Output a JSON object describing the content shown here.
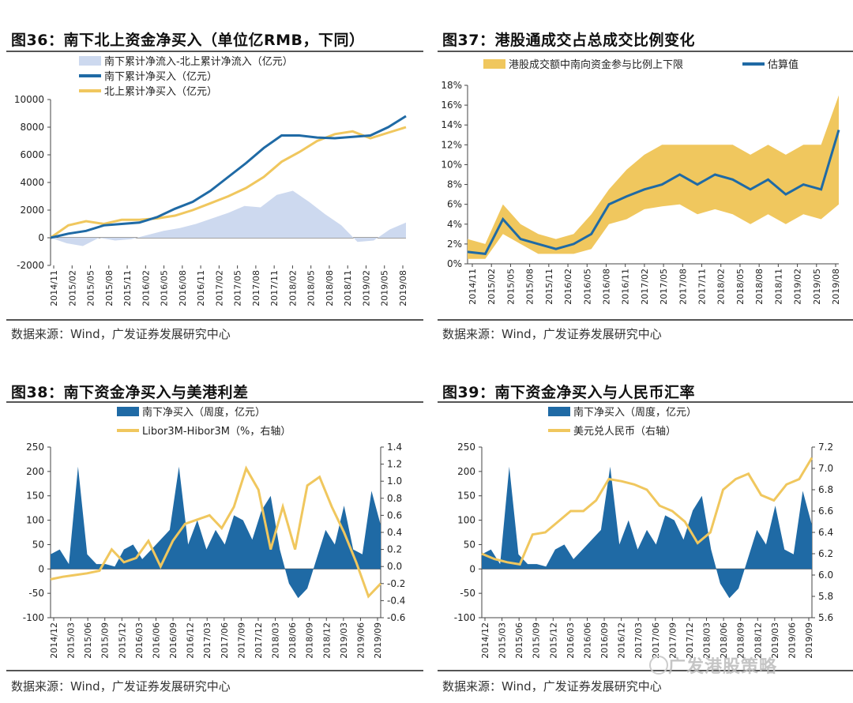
{
  "colors": {
    "dark_blue": "#1f6aa5",
    "gold": "#f0c75e",
    "light_blue": "#cdd9ef"
  },
  "source_text": "数据来源：Wind，广发证券发展研究中心",
  "watermark": "广发港股策略",
  "panels": [
    {
      "title": "图36：南下北上资金净买入（单位亿RMB，下同）",
      "source": "数据来源：Wind，广发证券发展研究中心"
    },
    {
      "title": "图37：港股通成交占总成交比例变化",
      "source": "数据来源：Wind，广发证券发展研究中心"
    },
    {
      "title": "图38：南下资金净买入与美港利差",
      "source": "数据来源：Wind，广发证券发展研究中心"
    },
    {
      "title": "图39：南下资金净买入与人民币汇率",
      "source": "数据来源：Wind，广发证券发展研究中心"
    }
  ],
  "chart_data": [
    {
      "type": "line",
      "title": "图36：南下北上资金净买入（单位亿RMB，下同）",
      "ylim": [
        -2000,
        10000
      ],
      "yticks": [
        -2000,
        0,
        2000,
        4000,
        6000,
        8000,
        10000
      ],
      "x_tick_labels": [
        "2014/11",
        "2015/02",
        "2015/05",
        "2015/08",
        "2015/11",
        "2016/02",
        "2016/05",
        "2016/08",
        "2016/11",
        "2017/02",
        "2017/05",
        "2017/08",
        "2017/11",
        "2018/02",
        "2018/05",
        "2018/08",
        "2018/11",
        "2019/02",
        "2019/05",
        "2019/08"
      ],
      "series": [
        {
          "name": "南下累计净流入-北上累计净流入（亿元）",
          "kind": "area",
          "values": [
            0,
            -400,
            -600,
            0,
            -200,
            -100,
            200,
            500,
            700,
            1000,
            1400,
            1800,
            2300,
            2200,
            3100,
            3400,
            2600,
            1700,
            900,
            -300,
            -200,
            600,
            1100
          ]
        },
        {
          "name": "南下累计净买入（亿元）",
          "kind": "line",
          "values": [
            0,
            300,
            500,
            900,
            1000,
            1100,
            1500,
            2100,
            2600,
            3400,
            4400,
            5400,
            6500,
            7400,
            7400,
            7250,
            7200,
            7300,
            7400,
            8000,
            8800
          ]
        },
        {
          "name": "北上累计净买入（亿元）",
          "kind": "line",
          "values": [
            0,
            900,
            1200,
            1000,
            1300,
            1300,
            1400,
            1600,
            2000,
            2500,
            3000,
            3600,
            4400,
            5500,
            6200,
            7000,
            7500,
            7700,
            7200,
            7600,
            8000
          ]
        }
      ]
    },
    {
      "type": "line",
      "title": "图37：港股通成交占总成交比例变化",
      "ylim": [
        0,
        18
      ],
      "yticks_label": [
        "0%",
        "2%",
        "4%",
        "6%",
        "8%",
        "10%",
        "12%",
        "14%",
        "16%",
        "18%"
      ],
      "x_tick_labels": [
        "2014/11",
        "2015/02",
        "2015/05",
        "2015/08",
        "2015/11",
        "2016/02",
        "2016/05",
        "2016/08",
        "2016/11",
        "2017/02",
        "2017/05",
        "2017/08",
        "2017/11",
        "2018/02",
        "2018/05",
        "2018/08",
        "2018/11",
        "2019/02",
        "2019/05",
        "2019/08"
      ],
      "series": [
        {
          "name": "港股成交额中南向资金参与比例上下限",
          "kind": "band",
          "lower": [
            0.5,
            0.5,
            3,
            2,
            1,
            1,
            1,
            1.5,
            4,
            4.5,
            5.5,
            5.8,
            6,
            5,
            5.5,
            5,
            4,
            5,
            4,
            5,
            4.5,
            6
          ],
          "upper": [
            2.5,
            2,
            6,
            4,
            3,
            2.5,
            3,
            5,
            7.5,
            9.5,
            11,
            12,
            12,
            12,
            12,
            12,
            11,
            12,
            11,
            12,
            12,
            17
          ]
        },
        {
          "name": "估算值",
          "kind": "line",
          "values": [
            1.2,
            1,
            4.5,
            2.5,
            2,
            1.5,
            2,
            3,
            6,
            6.8,
            7.5,
            8,
            9,
            8,
            9,
            8.5,
            7.5,
            8.5,
            7,
            8,
            7.5,
            13.5
          ]
        }
      ]
    },
    {
      "type": "bar_line",
      "title": "图38：南下资金净买入与美港利差",
      "y_left": {
        "ylim": [
          -100,
          250
        ],
        "ticks": [
          -100,
          -50,
          0,
          50,
          100,
          150,
          200,
          250
        ]
      },
      "y_right": {
        "ylim": [
          -0.6,
          1.4
        ],
        "ticks": [
          "-0.6",
          "-0.4",
          "-0.2",
          "0.0",
          "0.2",
          "0.4",
          "0.6",
          "0.8",
          "1.0",
          "1.2",
          "1.4"
        ]
      },
      "x_tick_labels": [
        "2014/12",
        "2015/03",
        "2015/06",
        "2015/09",
        "2015/12",
        "2016/03",
        "2016/06",
        "2016/09",
        "2016/12",
        "2017/03",
        "2017/06",
        "2017/09",
        "2017/12",
        "2018/03",
        "2018/06",
        "2018/09",
        "2018/12",
        "2019/03",
        "2019/06",
        "2019/09"
      ],
      "series": [
        {
          "name": "南下净买入（周度，亿元）",
          "kind": "area",
          "values": [
            30,
            40,
            10,
            210,
            30,
            10,
            10,
            5,
            40,
            50,
            20,
            40,
            60,
            80,
            210,
            50,
            100,
            40,
            80,
            50,
            110,
            100,
            60,
            120,
            150,
            40,
            -30,
            -60,
            -40,
            20,
            80,
            50,
            130,
            40,
            30,
            160,
            90
          ]
        },
        {
          "name": "Libor3M-Hibor3M（%，右轴）",
          "kind": "line",
          "values": [
            -0.15,
            -0.12,
            -0.1,
            -0.08,
            -0.05,
            0.2,
            0.05,
            0.1,
            0.3,
            0.0,
            0.3,
            0.5,
            0.55,
            0.6,
            0.45,
            0.7,
            1.15,
            0.9,
            0.2,
            0.7,
            0.2,
            0.95,
            1.05,
            0.7,
            0.4,
            0.05,
            -0.35,
            -0.2
          ]
        }
      ]
    },
    {
      "type": "bar_line",
      "title": "图39：南下资金净买入与人民币汇率",
      "y_left": {
        "ylim": [
          -100,
          250
        ],
        "ticks": [
          -100,
          -50,
          0,
          50,
          100,
          150,
          200,
          250
        ]
      },
      "y_right": {
        "ylim": [
          5.6,
          7.2
        ],
        "ticks": [
          "5.6",
          "5.8",
          "6.0",
          "6.2",
          "6.4",
          "6.6",
          "6.8",
          "7.0",
          "7.2"
        ]
      },
      "x_tick_labels": [
        "2014/12",
        "2015/03",
        "2015/06",
        "2015/09",
        "2015/12",
        "2016/03",
        "2016/06",
        "2016/09",
        "2016/12",
        "2017/03",
        "2017/06",
        "2017/09",
        "2017/12",
        "2018/03",
        "2018/06",
        "2018/09",
        "2018/12",
        "2019/03",
        "2019/06",
        "2019/09"
      ],
      "series": [
        {
          "name": "南下净买入（周度，亿元）",
          "kind": "area",
          "values": [
            30,
            40,
            10,
            210,
            30,
            10,
            10,
            5,
            40,
            50,
            20,
            40,
            60,
            80,
            210,
            50,
            100,
            40,
            80,
            50,
            110,
            100,
            60,
            120,
            150,
            40,
            -30,
            -60,
            -40,
            20,
            80,
            50,
            130,
            40,
            30,
            160,
            90
          ]
        },
        {
          "name": "美元兑人民币（右轴）",
          "kind": "line",
          "values": [
            6.2,
            6.15,
            6.12,
            6.1,
            6.38,
            6.4,
            6.5,
            6.6,
            6.6,
            6.7,
            6.9,
            6.88,
            6.85,
            6.8,
            6.65,
            6.6,
            6.5,
            6.3,
            6.4,
            6.8,
            6.9,
            6.95,
            6.75,
            6.7,
            6.85,
            6.9,
            7.1
          ]
        }
      ]
    }
  ]
}
